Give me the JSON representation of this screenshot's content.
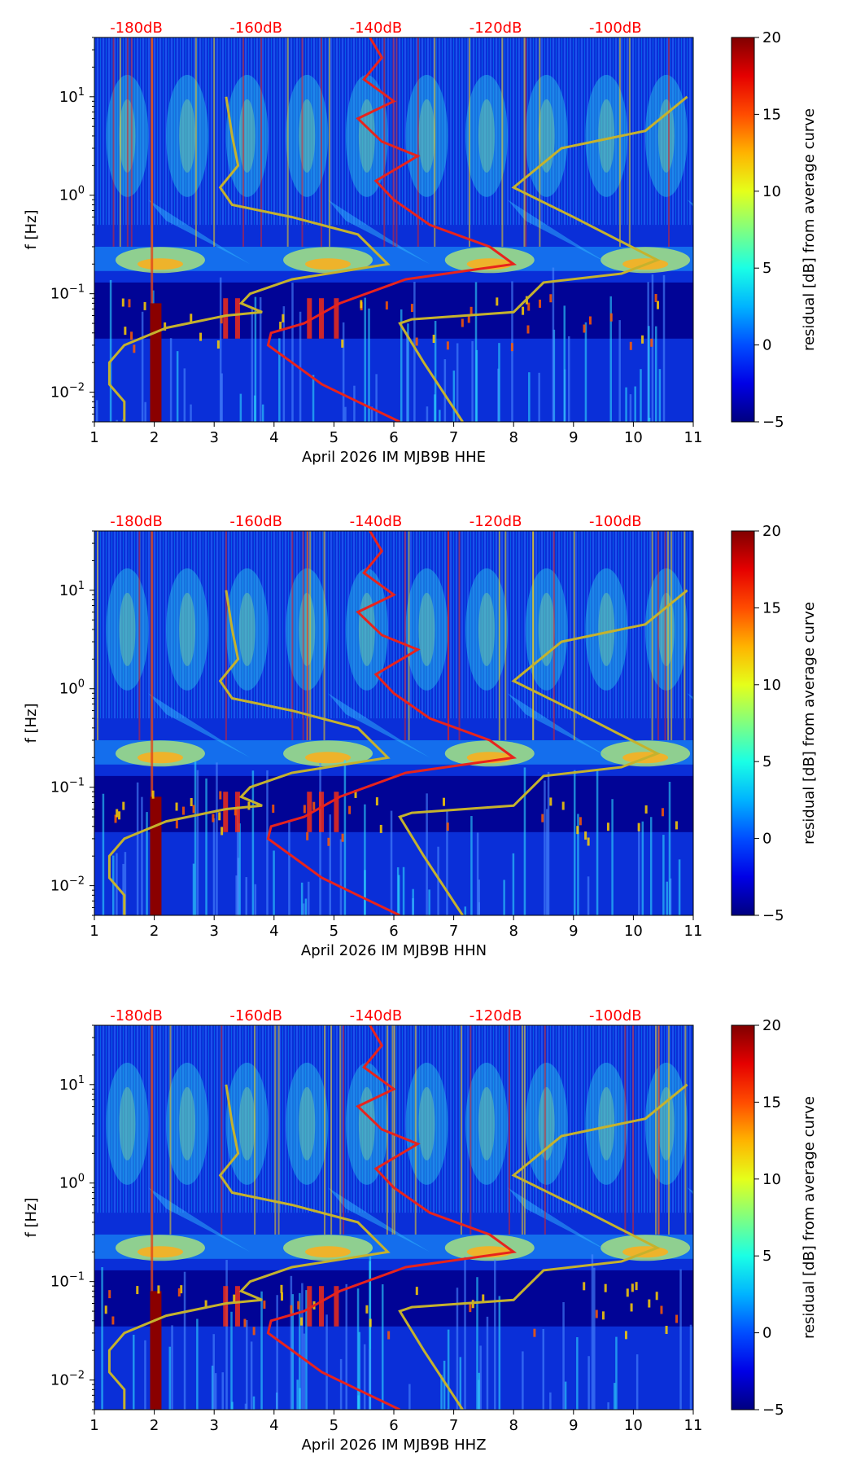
{
  "chart_data": [
    {
      "type": "heatmap",
      "title": "",
      "xlabel": "April 2026 IM MJB9B  HHE",
      "ylabel": "f [Hz]",
      "xlim": [
        1,
        11
      ],
      "ylim": [
        0.005,
        40
      ],
      "yscale": "log",
      "x_ticks": [
        "1",
        "2",
        "3",
        "4",
        "5",
        "6",
        "7",
        "8",
        "9",
        "10",
        "11"
      ],
      "y_ticks": [
        {
          "value": 0.01,
          "base": "10",
          "exp": "−2"
        },
        {
          "value": 0.1,
          "base": "10",
          "exp": "−1"
        },
        {
          "value": 1,
          "base": "10",
          "exp": "0"
        },
        {
          "value": 10,
          "base": "10",
          "exp": "1"
        }
      ],
      "db_ticks": [
        "-180dB",
        "-160dB",
        "-140dB",
        "-120dB",
        "-100dB"
      ],
      "colorbar": {
        "label": "residual [dB] from average curve",
        "ticks": [
          "20",
          "15",
          "10",
          "5",
          "0",
          "−5"
        ],
        "range": [
          -5,
          20
        ]
      },
      "colors": {
        "red_curve": "#e8231c",
        "yellow_curve": "#c5b22d",
        "db_label": "#ff0000"
      }
    },
    {
      "type": "heatmap",
      "title": "",
      "xlabel": "April 2026 IM MJB9B  HHN",
      "ylabel": "f [Hz]",
      "xlim": [
        1,
        11
      ],
      "ylim": [
        0.005,
        40
      ],
      "yscale": "log",
      "x_ticks": [
        "1",
        "2",
        "3",
        "4",
        "5",
        "6",
        "7",
        "8",
        "9",
        "10",
        "11"
      ],
      "y_ticks": [
        {
          "value": 0.01,
          "base": "10",
          "exp": "−2"
        },
        {
          "value": 0.1,
          "base": "10",
          "exp": "−1"
        },
        {
          "value": 1,
          "base": "10",
          "exp": "0"
        },
        {
          "value": 10,
          "base": "10",
          "exp": "1"
        }
      ],
      "db_ticks": [
        "-180dB",
        "-160dB",
        "-140dB",
        "-120dB",
        "-100dB"
      ],
      "colorbar": {
        "label": "residual [dB] from average curve",
        "ticks": [
          "20",
          "15",
          "10",
          "5",
          "0",
          "−5"
        ],
        "range": [
          -5,
          20
        ]
      },
      "colors": {
        "red_curve": "#e8231c",
        "yellow_curve": "#c5b22d",
        "db_label": "#ff0000"
      }
    },
    {
      "type": "heatmap",
      "title": "",
      "xlabel": "April 2026 IM MJB9B  HHZ",
      "ylabel": "f [Hz]",
      "xlim": [
        1,
        11
      ],
      "ylim": [
        0.005,
        40
      ],
      "yscale": "log",
      "x_ticks": [
        "1",
        "2",
        "3",
        "4",
        "5",
        "6",
        "7",
        "8",
        "9",
        "10",
        "11"
      ],
      "y_ticks": [
        {
          "value": 0.01,
          "base": "10",
          "exp": "−2"
        },
        {
          "value": 0.1,
          "base": "10",
          "exp": "−1"
        },
        {
          "value": 1,
          "base": "10",
          "exp": "0"
        },
        {
          "value": 10,
          "base": "10",
          "exp": "1"
        }
      ],
      "db_ticks": [
        "-180dB",
        "-160dB",
        "-140dB",
        "-120dB",
        "-100dB"
      ],
      "colorbar": {
        "label": "residual [dB] from average curve",
        "ticks": [
          "20",
          "15",
          "10",
          "5",
          "0",
          "−5"
        ],
        "range": [
          -5,
          20
        ]
      },
      "colors": {
        "red_curve": "#e8231c",
        "yellow_curve": "#c5b22d",
        "db_label": "#ff0000"
      }
    }
  ]
}
